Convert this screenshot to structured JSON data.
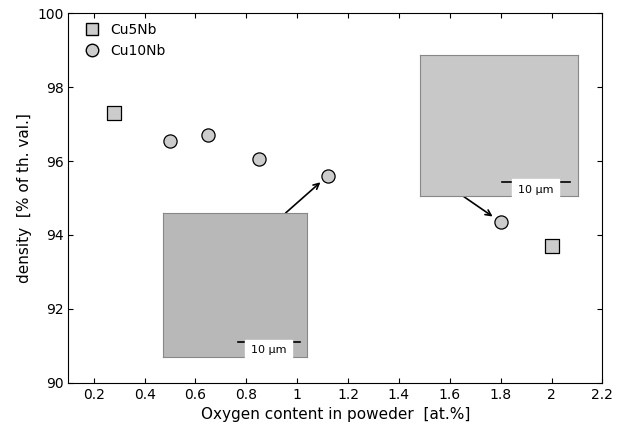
{
  "chart_data": {
    "type": "scatter",
    "x_label": "Oxygen content in poweder  [at.%]",
    "y_label": "density  [% of th. val.]",
    "series": [
      {
        "name": "Cu5Nb",
        "color": "#cccccc",
        "marker": "square",
        "x": [
          0.28,
          2.0
        ],
        "values": [
          97.3,
          93.7
        ]
      },
      {
        "name": "Cu10Nb",
        "color": "#cccccc",
        "marker": "circle",
        "x": [
          0.5,
          0.65,
          0.85,
          1.12,
          1.8
        ],
        "values": [
          96.55,
          96.7,
          96.05,
          95.6,
          94.35
        ]
      }
    ],
    "xlim": [
      0.1,
      2.2
    ],
    "xticks": [
      0.2,
      0.4,
      0.6,
      0.8,
      1,
      1.2,
      1.4,
      1.6,
      1.8,
      2,
      2.2
    ],
    "ylim": [
      90,
      100
    ],
    "yticks": [
      90,
      92,
      94,
      96,
      98,
      100
    ],
    "grid": false,
    "legend": "upper left",
    "annotations": [
      {
        "text": "10 µm",
        "x": 1.12,
        "y": 95.6
      },
      {
        "text": "10 µm",
        "x": 1.8,
        "y": 94.35
      }
    ]
  }
}
